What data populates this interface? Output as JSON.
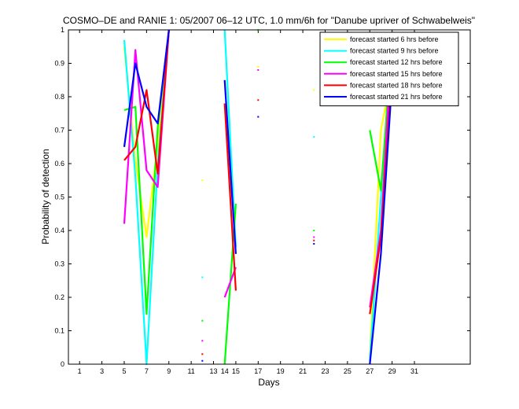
{
  "chart_data": {
    "type": "line",
    "title": "COSMO–DE and RANIE 1: 05/2007 06–12 UTC, 1.0 mm/6h for \"Danube upriver of Schwabelweis\"",
    "xlabel": "Days",
    "ylabel": "Probability of detection",
    "xlim": [
      0,
      36
    ],
    "ylim": [
      0,
      1
    ],
    "xticks": [
      1,
      3,
      5,
      7,
      9,
      11,
      13,
      14,
      15,
      17,
      19,
      21,
      23,
      25,
      27,
      29,
      31
    ],
    "yticks": [
      0,
      0.1,
      0.2,
      0.3,
      0.4,
      0.5,
      0.6,
      0.7,
      0.8,
      0.9,
      1
    ],
    "legend_position": "top-right",
    "series": [
      {
        "name": "forecast started 6 hrs before",
        "color": "#ffff00",
        "values": [
          [
            5,
            0.95
          ],
          [
            6,
            0.61
          ],
          [
            7,
            0.38
          ],
          [
            8,
            0.66
          ],
          [
            9,
            1.0
          ],
          null,
          [
            12,
            0.55
          ],
          null,
          [
            14,
            0.78
          ],
          [
            15,
            0.36
          ],
          null,
          [
            17,
            0.89
          ],
          null,
          [
            22,
            0.82
          ],
          null,
          [
            27,
            0.02
          ],
          [
            28,
            0.7
          ],
          [
            29,
            0.87
          ]
        ]
      },
      {
        "name": "forecast started 9 hrs before",
        "color": "#00ffff",
        "values": [
          [
            5,
            0.97
          ],
          [
            6,
            0.56
          ],
          [
            7,
            0.0
          ],
          [
            8,
            0.6
          ],
          [
            9,
            1.0
          ],
          null,
          [
            12,
            0.26
          ],
          null,
          [
            14,
            1.0
          ],
          [
            15,
            0.35
          ],
          null,
          [
            22,
            0.68
          ],
          null,
          [
            27,
            0.01
          ],
          [
            28,
            0.5
          ],
          [
            29,
            0.99
          ]
        ]
      },
      {
        "name": "forecast started 12 hrs before",
        "color": "#00ff00",
        "values": [
          [
            5,
            0.76
          ],
          [
            6,
            0.77
          ],
          [
            7,
            0.15
          ],
          [
            8,
            0.71
          ],
          [
            9,
            1.0
          ],
          null,
          [
            12,
            0.13
          ],
          null,
          [
            14,
            0.0
          ],
          [
            15,
            0.48
          ],
          null,
          [
            17,
            1.0
          ],
          null,
          [
            22,
            0.4
          ],
          null,
          [
            27,
            0.7
          ],
          [
            28,
            0.52
          ],
          [
            29,
            0.96
          ]
        ]
      },
      {
        "name": "forecast started 15 hrs before",
        "color": "#ff00ff",
        "values": [
          [
            5,
            0.42
          ],
          [
            6,
            0.94
          ],
          [
            7,
            0.58
          ],
          [
            8,
            0.53
          ],
          [
            9,
            1.0
          ],
          null,
          [
            12,
            0.07
          ],
          null,
          [
            14,
            0.2
          ],
          [
            15,
            0.29
          ],
          null,
          [
            17,
            0.88
          ],
          null,
          [
            22,
            0.38
          ],
          null,
          [
            27,
            0.17
          ],
          [
            28,
            0.4
          ],
          [
            29,
            0.98
          ]
        ]
      },
      {
        "name": "forecast started 18 hrs before",
        "color": "#ff0000",
        "values": [
          [
            5,
            0.61
          ],
          [
            6,
            0.65
          ],
          [
            7,
            0.82
          ],
          [
            8,
            0.57
          ],
          [
            9,
            1.0
          ],
          null,
          [
            12,
            0.03
          ],
          null,
          [
            14,
            0.78
          ],
          [
            15,
            0.22
          ],
          null,
          [
            17,
            0.79
          ],
          null,
          [
            22,
            0.37
          ],
          null,
          [
            27,
            0.15
          ],
          [
            28,
            0.38
          ],
          [
            29,
            0.88
          ]
        ]
      },
      {
        "name": "forecast started 21 hrs before",
        "color": "#0000ff",
        "values": [
          [
            5,
            0.65
          ],
          [
            6,
            0.9
          ],
          [
            7,
            0.77
          ],
          [
            8,
            0.72
          ],
          [
            9,
            1.0
          ],
          null,
          [
            12,
            0.01
          ],
          null,
          [
            14,
            0.85
          ],
          [
            15,
            0.33
          ],
          null,
          [
            17,
            0.74
          ],
          null,
          [
            22,
            0.36
          ],
          null,
          [
            27,
            0.0
          ],
          [
            28,
            0.33
          ],
          [
            29,
            0.85
          ]
        ]
      }
    ]
  }
}
